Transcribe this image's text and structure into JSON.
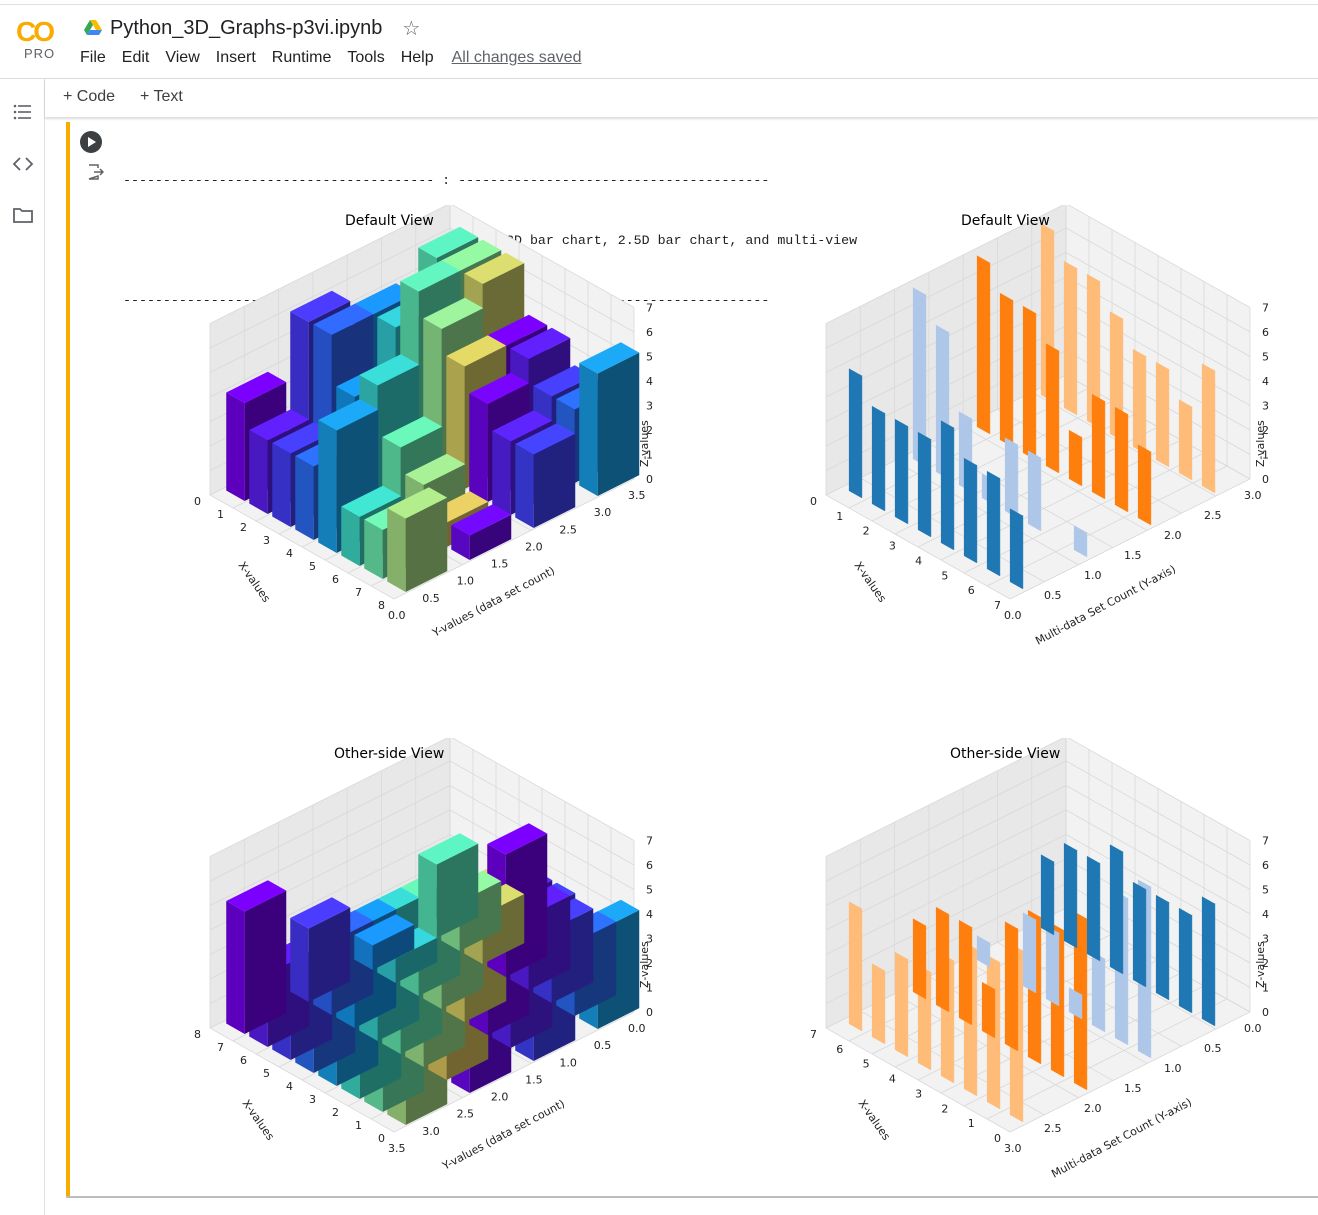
{
  "app": {
    "logo_text": "CO",
    "logo_badge": "PRO",
    "notebook_title": "Python_3D_Graphs-p3vi.ipynb",
    "star_icon": "star-outline-icon",
    "menu": [
      "File",
      "Edit",
      "View",
      "Insert",
      "Runtime",
      "Tools",
      "Help"
    ],
    "save_status": "All changes saved"
  },
  "sidebar": {
    "icons": [
      "table-of-contents-icon",
      "code-snippets-icon",
      "folder-icon"
    ]
  },
  "toolbar": {
    "add_code": "+ Code",
    "add_text": "+ Text"
  },
  "cell": {
    "output_lines": [
      "--------------------------------------- : ---------------------------------------",
      "                                  Ducky : Draws 3D bar chart, 2.5D bar chart, and multi-view",
      "--------------------------------------- : ---------------------------------------"
    ]
  },
  "colors": {
    "accent": "#f9ab00",
    "tab10_blue": "#1f77b4",
    "tab10_lightblue": "#aec7e8",
    "tab10_orange": "#ff7f0e",
    "tab10_lightorange": "#ffbb78"
  },
  "chart_data": [
    {
      "type": "bar",
      "subtype": "3d-bar",
      "title": "Default View",
      "xlabel": "X-values",
      "ylabel": "Y-values (data set count)",
      "zlabel": "Z-values",
      "xticks": [
        "0",
        "1",
        "2",
        "3",
        "4",
        "5",
        "6",
        "7",
        "8"
      ],
      "yticks": [
        "0.0",
        "0.5",
        "1.0",
        "1.5",
        "2.0",
        "2.5",
        "3.0",
        "3.5"
      ],
      "zticks": [
        "0",
        "1",
        "2",
        "3",
        "4",
        "5",
        "6",
        "7"
      ],
      "zlim": [
        0,
        7
      ],
      "series": [
        {
          "values": [
            4,
            3,
            3,
            3,
            5,
            2,
            2,
            3
          ]
        },
        {
          "values": [
            6,
            6,
            4,
            5,
            3,
            2,
            1,
            1
          ]
        },
        {
          "values": [
            5,
            5,
            7,
            6,
            5,
            4,
            3,
            3
          ]
        },
        {
          "values": [
            6,
            6,
            6,
            4,
            4,
            3,
            3,
            5
          ]
        }
      ]
    },
    {
      "type": "bar",
      "subtype": "2.5d-bar",
      "title": "Default View",
      "xlabel": "X-values",
      "ylabel": "Multi-data Set Count (Y-axis)",
      "zlabel": "Z-values",
      "xticks": [
        "0",
        "1",
        "2",
        "3",
        "4",
        "5",
        "6",
        "7"
      ],
      "yticks": [
        "0.0",
        "0.5",
        "1.0",
        "1.5",
        "2.0",
        "2.5",
        "3.0"
      ],
      "zticks": [
        "0",
        "1",
        "2",
        "3",
        "4",
        "5",
        "6",
        "7"
      ],
      "zlim": [
        0,
        7
      ],
      "series": [
        {
          "color": "#1f77b4",
          "values": [
            5,
            4,
            4,
            4,
            5,
            4,
            4,
            3
          ]
        },
        {
          "color": "#aec7e8",
          "values": [
            7,
            6,
            3,
            1,
            3,
            3,
            0,
            1
          ]
        },
        {
          "color": "#ff7f0e",
          "values": [
            7,
            6,
            6,
            5,
            2,
            4,
            4,
            3
          ]
        },
        {
          "color": "#ffbb78",
          "values": [
            7,
            6,
            6,
            5,
            4,
            4,
            3,
            5
          ]
        }
      ]
    },
    {
      "type": "bar",
      "subtype": "3d-bar",
      "title": "Other-side View",
      "xlabel": "X-values",
      "ylabel": "Y-values (data set count)",
      "zlabel": "Z-values",
      "xticks": [
        "0",
        "1",
        "2",
        "3",
        "4",
        "5",
        "6",
        "7",
        "8"
      ],
      "yticks": [
        "0.0",
        "0.5",
        "1.0",
        "1.5",
        "2.0",
        "2.5",
        "3.0",
        "3.5"
      ],
      "zticks": [
        "0",
        "1",
        "2",
        "3",
        "4",
        "5",
        "6",
        "7"
      ],
      "zlim": [
        0,
        7
      ]
    },
    {
      "type": "bar",
      "subtype": "2.5d-bar",
      "title": "Other-side View",
      "xlabel": "X-values",
      "ylabel": "Multi-data Set Count (Y-axis)",
      "zlabel": "Z-values",
      "xticks": [
        "0",
        "1",
        "2",
        "3",
        "4",
        "5",
        "6",
        "7"
      ],
      "yticks": [
        "0.0",
        "0.5",
        "1.0",
        "1.5",
        "2.0",
        "2.5",
        "3.0"
      ],
      "zticks": [
        "0",
        "1",
        "2",
        "3",
        "4",
        "5",
        "6",
        "7"
      ],
      "zlim": [
        0,
        7
      ]
    }
  ]
}
